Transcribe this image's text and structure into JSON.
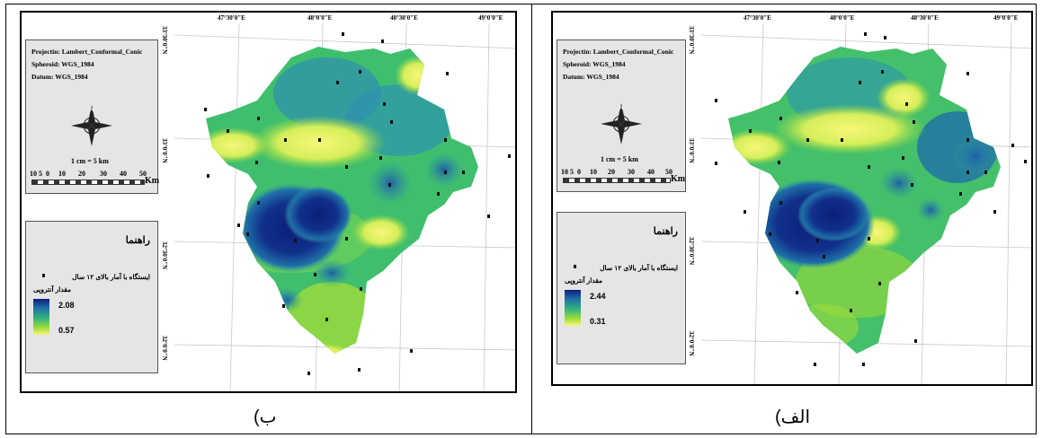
{
  "panels": [
    {
      "id": "b",
      "caption": "ب)",
      "projection": "Projectin: Lambert_Conformal_Conic",
      "spheroid": "Spheroid: WGS_1984",
      "datum": "Datum: WGS_1984",
      "scale_text": "1 cm = 5 km",
      "scale_ticks": [
        "10",
        "5",
        "0",
        "10",
        "20",
        "30",
        "40",
        "50"
      ],
      "scale_unit": "Km",
      "lon_labels": [
        "47°30'0\"E",
        "48°0'0\"E",
        "48°30'0\"E",
        "49°0'0\"E"
      ],
      "lat_labels": [
        "33°30'0\"N",
        "33°0'0\"N",
        "32°30'0\"N",
        "32°0'0\"N"
      ],
      "legend_title": "راهنما",
      "legend_station": "ایستگاه با آمار بالای ۱۲ سال",
      "legend_variable": "مقدار آنتروپی",
      "ramp_max": "2.08",
      "ramp_min": "0.57"
    },
    {
      "id": "alef",
      "caption": "الف)",
      "projection": "Projectin: Lambert_Conformal_Conic",
      "spheroid": "Spheroid: WGS_1984",
      "datum": "Datum: WGS_1984",
      "scale_text": "1 cm = 5 km",
      "scale_ticks": [
        "10",
        "5",
        "0",
        "10",
        "20",
        "30",
        "40",
        "50"
      ],
      "scale_unit": "Km",
      "lon_labels": [
        "47°30'0\"E",
        "48°0'0\"E",
        "48°30'0\"E",
        "49°0'0\"E"
      ],
      "lat_labels": [
        "33°30'0\"N",
        "33°0'0\"N",
        "32°30'0\"N",
        "32°0'0\"N"
      ],
      "legend_title": "راهنما",
      "legend_station": "ایستگاه با آمار بالای ۱۲ سال",
      "legend_variable": "مقدار آنتروپی",
      "ramp_max": "2.44",
      "ramp_min": "0.31"
    }
  ],
  "colors": {
    "high": "#0c1f7a",
    "mid_high": "#1f6fa8",
    "mid": "#36b77a",
    "mid_low": "#9ddc3a",
    "low": "#f7f77a"
  }
}
